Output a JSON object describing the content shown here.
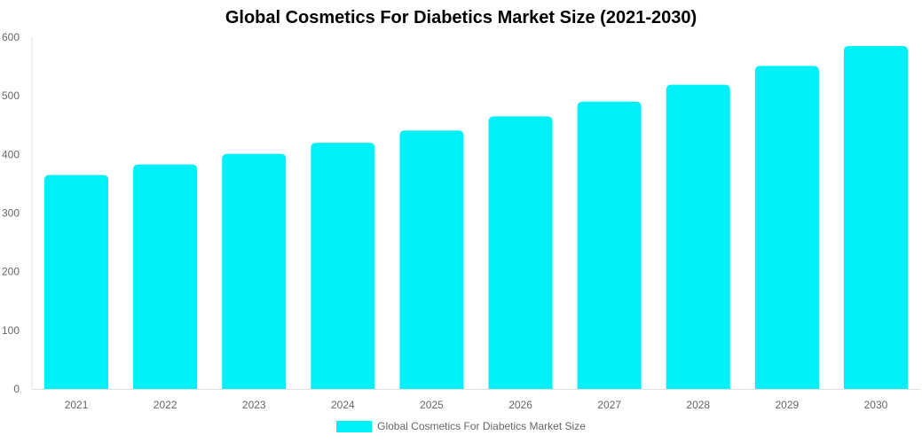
{
  "chart_data": {
    "type": "bar",
    "title": "Global Cosmetics For Diabetics Market Size (2021-2030)",
    "xlabel": "",
    "ylabel": "",
    "categories": [
      "2021",
      "2022",
      "2023",
      "2024",
      "2025",
      "2026",
      "2027",
      "2028",
      "2029",
      "2030"
    ],
    "series": [
      {
        "name": "Global Cosmetics For Diabetics Market Size",
        "values": [
          365,
          383,
          401,
          420,
          441,
          465,
          490,
          519,
          551,
          585
        ],
        "color": "#00f0f8"
      }
    ],
    "ylim": [
      0,
      600
    ],
    "yticks": [
      0,
      100,
      200,
      300,
      400,
      500,
      600
    ],
    "grid": false,
    "legend_position": "bottom"
  }
}
